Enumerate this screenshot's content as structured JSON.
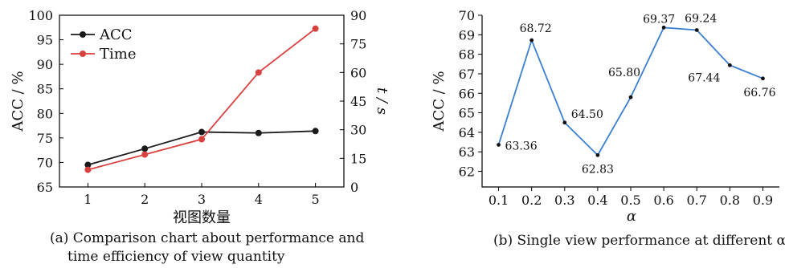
{
  "chart_data": [
    {
      "type": "line",
      "x": [
        1,
        2,
        3,
        4,
        5
      ],
      "xlabel": "视图数量",
      "ylabel": "ACC / %",
      "ylabel_right": "t / s",
      "ylim": [
        65,
        100
      ],
      "yticks": [
        65,
        70,
        75,
        80,
        85,
        90,
        95,
        100
      ],
      "ylim_right": [
        0,
        90
      ],
      "yticks_right": [
        0,
        15,
        30,
        45,
        60,
        75,
        90
      ],
      "legend": "top-left",
      "series": [
        {
          "name": "ACC",
          "axis": "left",
          "color": "#1a1a1a",
          "values": [
            69.5,
            72.8,
            76.2,
            76.0,
            76.4
          ]
        },
        {
          "name": "Time",
          "axis": "right",
          "color": "#d9413f",
          "values": [
            9,
            17,
            25,
            60,
            83
          ]
        }
      ],
      "caption": [
        "(a) Comparison chart about performance and",
        "time efficiency of view quantity"
      ]
    },
    {
      "type": "line",
      "x": [
        0.1,
        0.2,
        0.3,
        0.4,
        0.5,
        0.6,
        0.7,
        0.8,
        0.9
      ],
      "xticklabels": [
        "0.1",
        "0.2",
        "0.3",
        "0.4",
        "0.5",
        "0.6",
        "0.7",
        "0.8",
        "0.9"
      ],
      "xlabel": "α",
      "ylabel": "ACC / %",
      "ylim": [
        61.2,
        70
      ],
      "yticks": [
        62,
        63,
        64,
        65,
        66,
        67,
        68,
        69,
        70
      ],
      "series": [
        {
          "color": "#3a7fd0",
          "values": [
            63.36,
            68.72,
            64.5,
            62.83,
            65.8,
            69.37,
            69.24,
            67.44,
            66.76
          ],
          "labels": [
            "63.36",
            "68.72",
            "64.50",
            "62.83",
            "65.80",
            "69.37",
            "69.24",
            "67.44",
            "66.76"
          ]
        }
      ],
      "caption": "(b) Single view performance at different α"
    }
  ]
}
